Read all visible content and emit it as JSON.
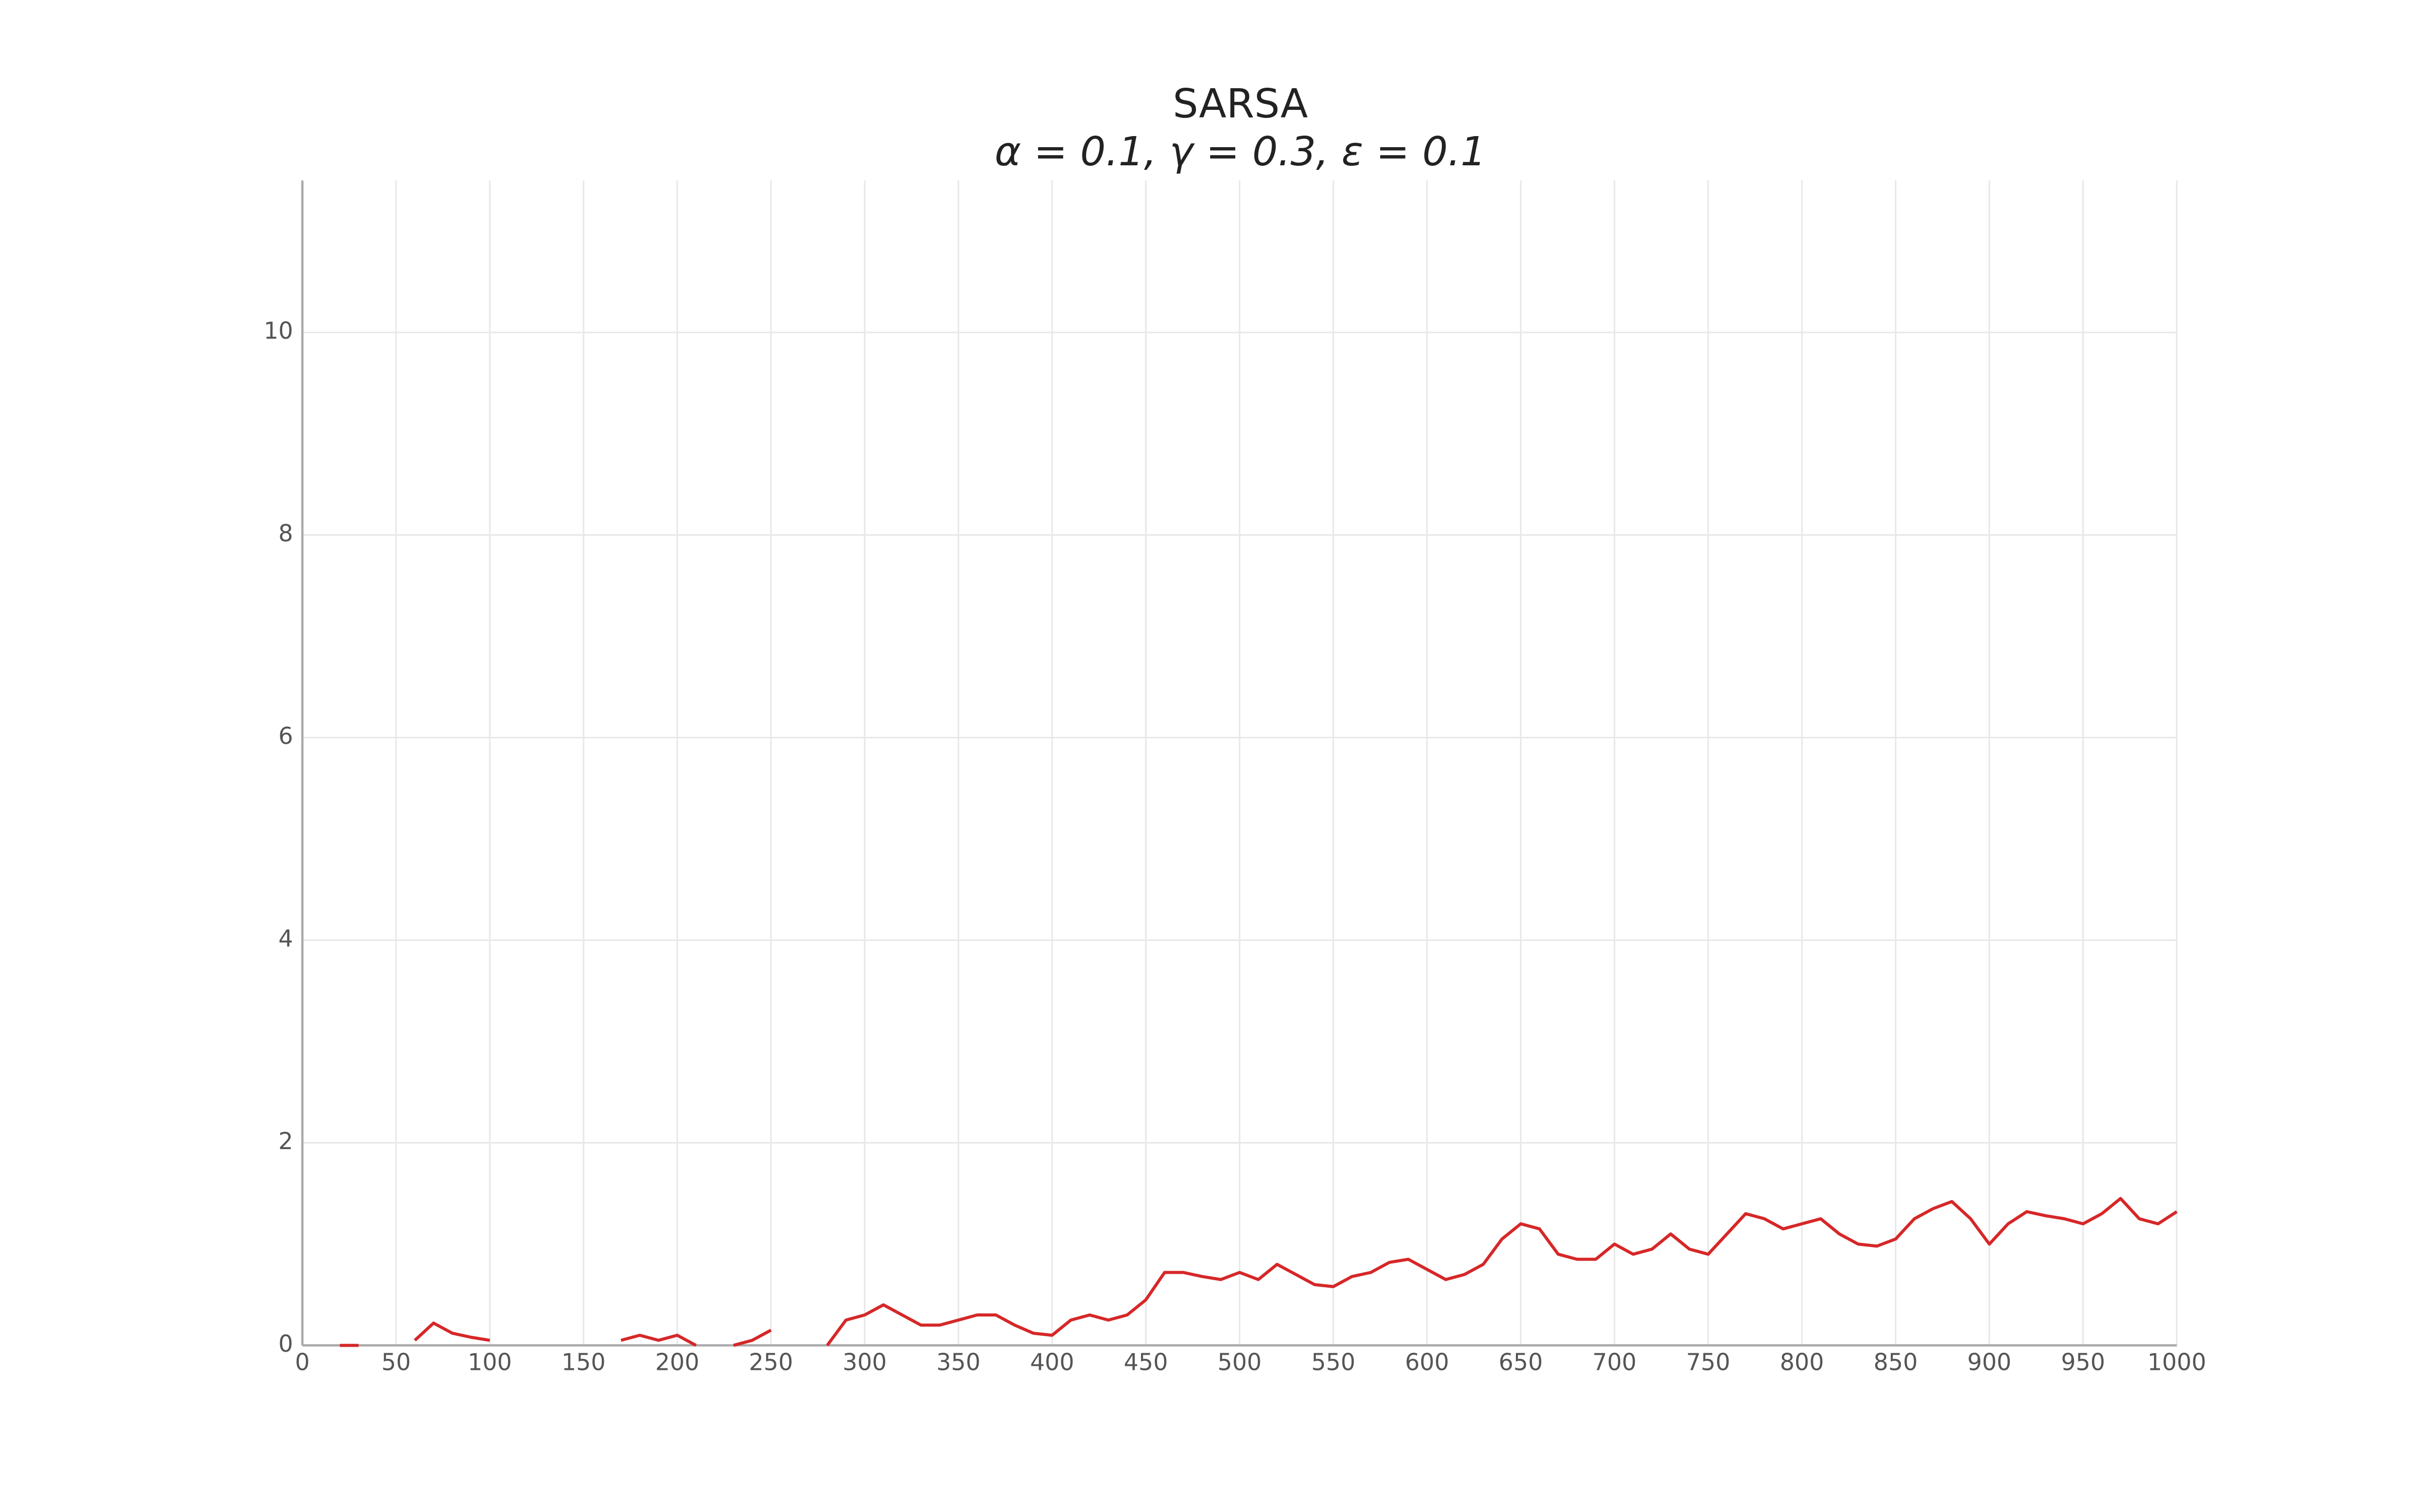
{
  "chart_data": {
    "type": "line",
    "title": "SARSA",
    "subtitle": "α = 0.1, γ = 0.3, ε = 0.1",
    "x": [
      0,
      10,
      20,
      30,
      40,
      50,
      60,
      70,
      80,
      90,
      100,
      110,
      120,
      130,
      140,
      150,
      160,
      170,
      180,
      190,
      200,
      210,
      220,
      230,
      240,
      250,
      260,
      270,
      280,
      290,
      300,
      310,
      320,
      330,
      340,
      350,
      360,
      370,
      380,
      390,
      400,
      410,
      420,
      430,
      440,
      450,
      460,
      470,
      480,
      490,
      500,
      510,
      520,
      530,
      540,
      550,
      560,
      570,
      580,
      590,
      600,
      610,
      620,
      630,
      640,
      650,
      660,
      670,
      680,
      690,
      700,
      710,
      720,
      730,
      740,
      750,
      760,
      770,
      780,
      790,
      800,
      810,
      820,
      830,
      840,
      850,
      860,
      870,
      880,
      890,
      900,
      910,
      920,
      930,
      940,
      950,
      960,
      970,
      980,
      990,
      1000
    ],
    "series": [
      {
        "color": "#d62728",
        "values": [
          null,
          null,
          0.0,
          0.0,
          null,
          null,
          0.05,
          0.22,
          0.12,
          0.08,
          0.05,
          null,
          null,
          null,
          null,
          null,
          null,
          0.05,
          0.1,
          0.05,
          0.1,
          0.0,
          null,
          0.0,
          0.05,
          0.15,
          null,
          null,
          0.0,
          0.25,
          0.3,
          0.4,
          0.3,
          0.2,
          0.2,
          0.25,
          0.3,
          0.3,
          0.2,
          0.12,
          0.1,
          0.25,
          0.3,
          0.25,
          0.3,
          0.45,
          0.72,
          0.72,
          0.68,
          0.65,
          0.72,
          0.65,
          0.8,
          0.7,
          0.6,
          0.58,
          0.68,
          0.72,
          0.82,
          0.85,
          0.75,
          0.65,
          0.7,
          0.8,
          1.05,
          1.2,
          1.15,
          0.9,
          0.85,
          0.85,
          1.0,
          0.9,
          0.95,
          1.1,
          0.95,
          0.9,
          1.1,
          1.3,
          1.25,
          1.15,
          1.2,
          1.25,
          1.1,
          1.0,
          0.98,
          1.05,
          1.25,
          1.35,
          1.42,
          1.25,
          1.0,
          1.2,
          1.32,
          1.28,
          1.25,
          1.2,
          1.3,
          1.45,
          1.25,
          1.2,
          1.32
        ]
      }
    ],
    "xlim": [
      0,
      1000
    ],
    "xticks": [
      0,
      50,
      100,
      150,
      200,
      250,
      300,
      350,
      400,
      450,
      500,
      550,
      600,
      650,
      700,
      750,
      800,
      850,
      900,
      950,
      1000
    ],
    "ylim": [
      0,
      11.5
    ],
    "yticks": [
      0,
      2,
      4,
      6,
      8,
      10
    ],
    "grid": true
  }
}
